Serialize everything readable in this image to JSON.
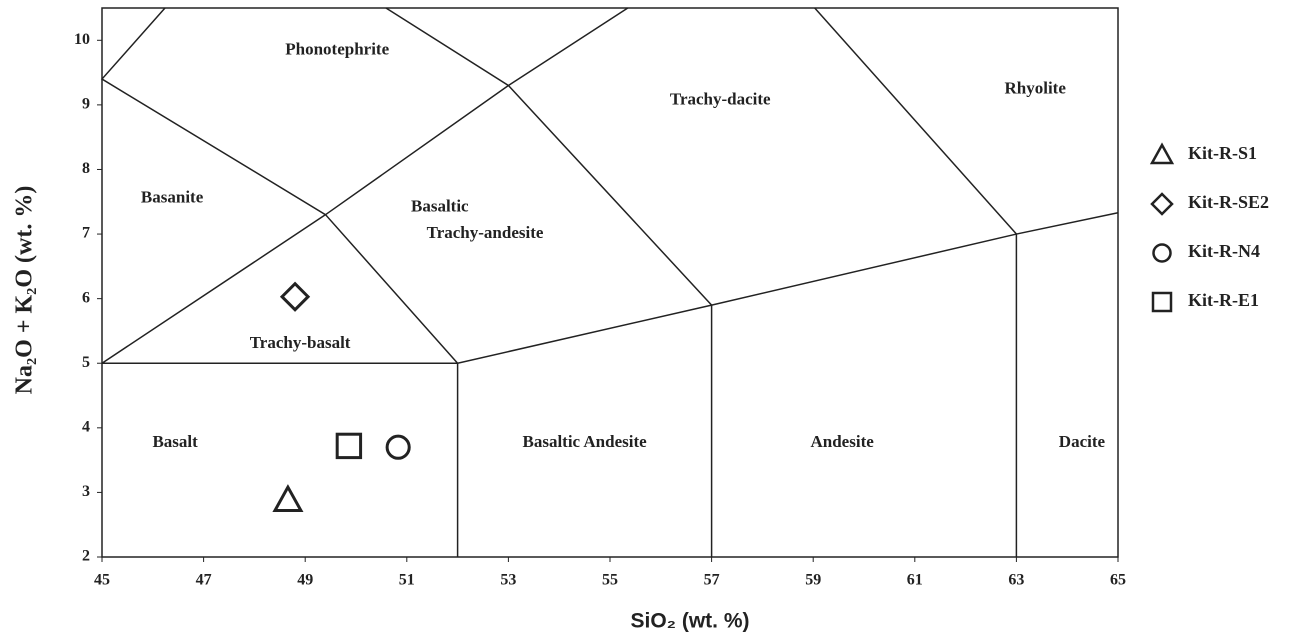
{
  "chart_data": {
    "type": "scatter",
    "x_label": "SiO₂ (wt. %)",
    "y_label": "Na₂O + K₂O (wt. %)",
    "xlim": [
      45,
      65
    ],
    "ylim": [
      2,
      10.5
    ],
    "xticks": [
      45,
      47,
      49,
      51,
      53,
      55,
      57,
      59,
      61,
      63,
      65
    ],
    "yticks": [
      2,
      3,
      4,
      5,
      6,
      7,
      8,
      9,
      10
    ],
    "series": [
      {
        "name": "Kit-R-S1",
        "marker": "triangle",
        "color": "#222222",
        "x": [
          48.66
        ],
        "y": [
          2.88
        ]
      },
      {
        "name": "Kit-R-SE2",
        "marker": "diamond",
        "color": "#222222",
        "x": [
          48.8
        ],
        "y": [
          6.03
        ]
      },
      {
        "name": "Kit-R-N4",
        "marker": "circle",
        "color": "#222222",
        "x": [
          50.83
        ],
        "y": [
          3.7
        ]
      },
      {
        "name": "Kit-R-E1",
        "marker": "square",
        "color": "#222222",
        "x": [
          49.86
        ],
        "y": [
          3.72
        ]
      }
    ],
    "boundaries": [
      {
        "x": [
          45,
          52,
          57,
          63,
          65
        ],
        "y": [
          5,
          5,
          5.9,
          7,
          7.33
        ]
      },
      {
        "x": [
          52,
          52
        ],
        "y": [
          2,
          5
        ]
      },
      {
        "x": [
          57,
          57
        ],
        "y": [
          2,
          5.9
        ]
      },
      {
        "x": [
          63,
          63
        ],
        "y": [
          2,
          7
        ]
      },
      {
        "x": [
          45,
          49.4,
          53,
          55.35
        ],
        "y": [
          5,
          7.3,
          9.3,
          10.5
        ]
      },
      {
        "x": [
          46.24,
          45,
          49.4,
          52
        ],
        "y": [
          10.5,
          9.4,
          7.3,
          5
        ]
      },
      {
        "x": [
          50.59,
          53,
          57
        ],
        "y": [
          10.5,
          9.3,
          5.9
        ]
      },
      {
        "x": [
          59.03,
          63
        ],
        "y": [
          10.5,
          7
        ]
      }
    ],
    "regions": [
      {
        "label": "Phonotephrite",
        "x": 49.63,
        "y": 9.84
      },
      {
        "label": "Basanite",
        "x": 46.38,
        "y": 7.55
      },
      {
        "label": "Basaltic",
        "x": 51.65,
        "y": 7.41
      },
      {
        "label": "Trachy-andesite",
        "x": 52.54,
        "y": 7.0
      },
      {
        "label": "Trachy-basalt",
        "x": 48.9,
        "y": 5.3
      },
      {
        "label": "Trachy-dacite",
        "x": 57.17,
        "y": 9.07
      },
      {
        "label": "Rhyolite",
        "x": 63.37,
        "y": 9.24
      },
      {
        "label": "Basalt",
        "x": 46.44,
        "y": 3.76
      },
      {
        "label": "Basaltic Andesite",
        "x": 54.5,
        "y": 3.76
      },
      {
        "label": "Andesite",
        "x": 59.57,
        "y": 3.76
      },
      {
        "label": "Dacite",
        "x": 64.29,
        "y": 3.76
      }
    ]
  }
}
